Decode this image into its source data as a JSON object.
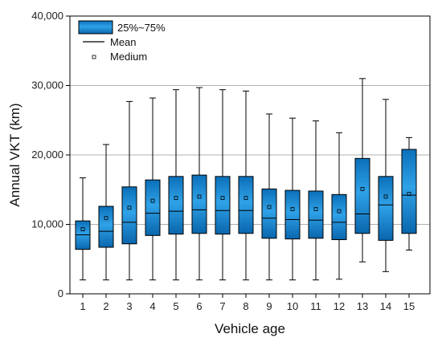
{
  "chart_data": {
    "type": "box",
    "xlabel": "Vehicle age",
    "ylabel": "Annual VKT (km)",
    "ylim": [
      0,
      40000
    ],
    "yticks": [
      0,
      10000,
      20000,
      30000,
      40000
    ],
    "ytick_labels": [
      "0",
      "10,000",
      "20,000",
      "30,000",
      "40,000"
    ],
    "grid": "horizontal",
    "legend_position": "top-left",
    "legend": {
      "box_label": "25%~75%",
      "mean_label": "Mean",
      "medium_label": "Medium"
    },
    "colors": {
      "box_top": "#0b6fb8",
      "box_mid": "#2fa2e8",
      "box_bottom": "#0a66ad",
      "outline": "#000000",
      "grid": "#b0b0b0"
    },
    "categories": [
      "1",
      "2",
      "3",
      "4",
      "5",
      "6",
      "7",
      "8",
      "9",
      "10",
      "11",
      "12",
      "13",
      "14",
      "15"
    ],
    "boxes": [
      {
        "min": 2000,
        "q1": 6400,
        "median": 8500,
        "q3": 10500,
        "max": 16700,
        "mean": 9300
      },
      {
        "min": 2000,
        "q1": 6700,
        "median": 9000,
        "q3": 12600,
        "max": 21500,
        "mean": 10900
      },
      {
        "min": 2000,
        "q1": 7200,
        "median": 10300,
        "q3": 15400,
        "max": 27700,
        "mean": 12400
      },
      {
        "min": 2000,
        "q1": 8400,
        "median": 11600,
        "q3": 16400,
        "max": 28200,
        "mean": 13400
      },
      {
        "min": 2000,
        "q1": 8600,
        "median": 11900,
        "q3": 16900,
        "max": 29400,
        "mean": 13800
      },
      {
        "min": 2000,
        "q1": 8700,
        "median": 12100,
        "q3": 17100,
        "max": 29700,
        "mean": 14000
      },
      {
        "min": 2000,
        "q1": 8600,
        "median": 12000,
        "q3": 16900,
        "max": 29400,
        "mean": 13800
      },
      {
        "min": 2000,
        "q1": 8700,
        "median": 12000,
        "q3": 16900,
        "max": 29200,
        "mean": 13800
      },
      {
        "min": 2000,
        "q1": 8000,
        "median": 10900,
        "q3": 15100,
        "max": 25900,
        "mean": 12500
      },
      {
        "min": 2000,
        "q1": 7900,
        "median": 10700,
        "q3": 14900,
        "max": 25300,
        "mean": 12200
      },
      {
        "min": 2000,
        "q1": 8000,
        "median": 10600,
        "q3": 14800,
        "max": 24900,
        "mean": 12200
      },
      {
        "min": 2100,
        "q1": 7800,
        "median": 10300,
        "q3": 14300,
        "max": 23200,
        "mean": 11900
      },
      {
        "min": 4600,
        "q1": 8700,
        "median": 11500,
        "q3": 19500,
        "max": 31000,
        "mean": 15100
      },
      {
        "min": 3200,
        "q1": 7700,
        "median": 12800,
        "q3": 16900,
        "max": 28000,
        "mean": 14000
      },
      {
        "min": 6300,
        "q1": 8700,
        "median": 14200,
        "q3": 20800,
        "max": 22500,
        "mean": 14400
      }
    ]
  }
}
